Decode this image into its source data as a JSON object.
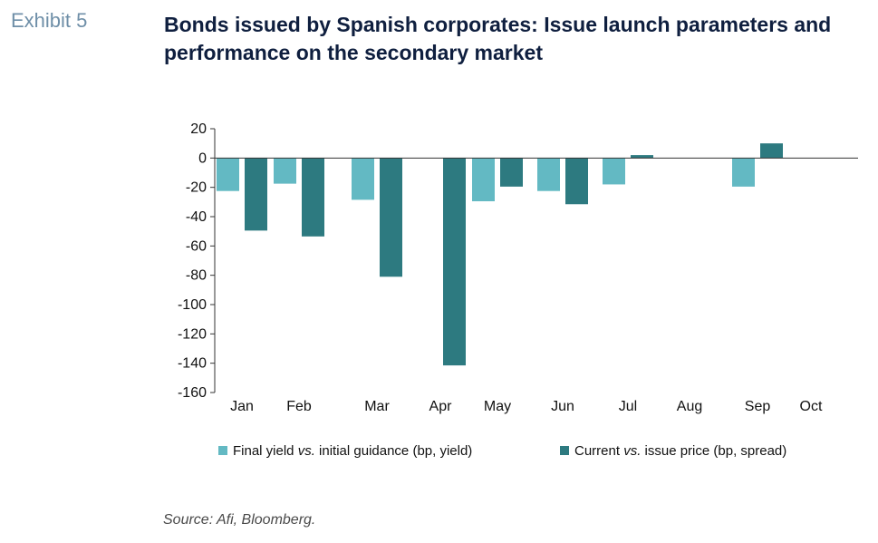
{
  "exhibit_label": "Exhibit 5",
  "title": "Bonds issued by Spanish corporates: Issue launch parameters and performance on the secondary market",
  "source": "Source: Afi, Bloomberg.",
  "colors": {
    "series1": "#63b9c3",
    "series2": "#2d7a80",
    "axis": "#333333"
  },
  "chart_data": {
    "type": "bar",
    "title": "Bonds issued by Spanish corporates: Issue launch parameters and performance on the secondary market",
    "categories": [
      "Jan",
      "Feb",
      "Mar",
      "Apr",
      "May",
      "Jun",
      "Jul",
      "Aug",
      "Sep",
      "Oct"
    ],
    "series": [
      {
        "name": "Final yield vs. initial guidance (bp, yield)",
        "legend_parts": [
          "Final yield ",
          "vs.",
          " initial guidance (bp, yield)"
        ],
        "color": "#63b9c3",
        "values": [
          -22.5,
          -17.5,
          -28.5,
          null,
          -29.5,
          -22.5,
          -18,
          null,
          -19.5,
          null
        ]
      },
      {
        "name": "Current vs. issue price (bp, spread)",
        "legend_parts": [
          "Current ",
          "vs.",
          " issue price (bp, spread)"
        ],
        "color": "#2d7a80",
        "values": [
          -49.5,
          -53.5,
          -81,
          -141.5,
          -19.5,
          -31.5,
          2,
          null,
          10,
          null
        ]
      }
    ],
    "ylim": [
      -160,
      20
    ],
    "yticks": [
      20,
      0,
      -20,
      -40,
      -60,
      -80,
      -100,
      -120,
      -140,
      -160
    ],
    "xlabel": "",
    "ylabel": "",
    "grid": false,
    "legend": "bottom"
  }
}
